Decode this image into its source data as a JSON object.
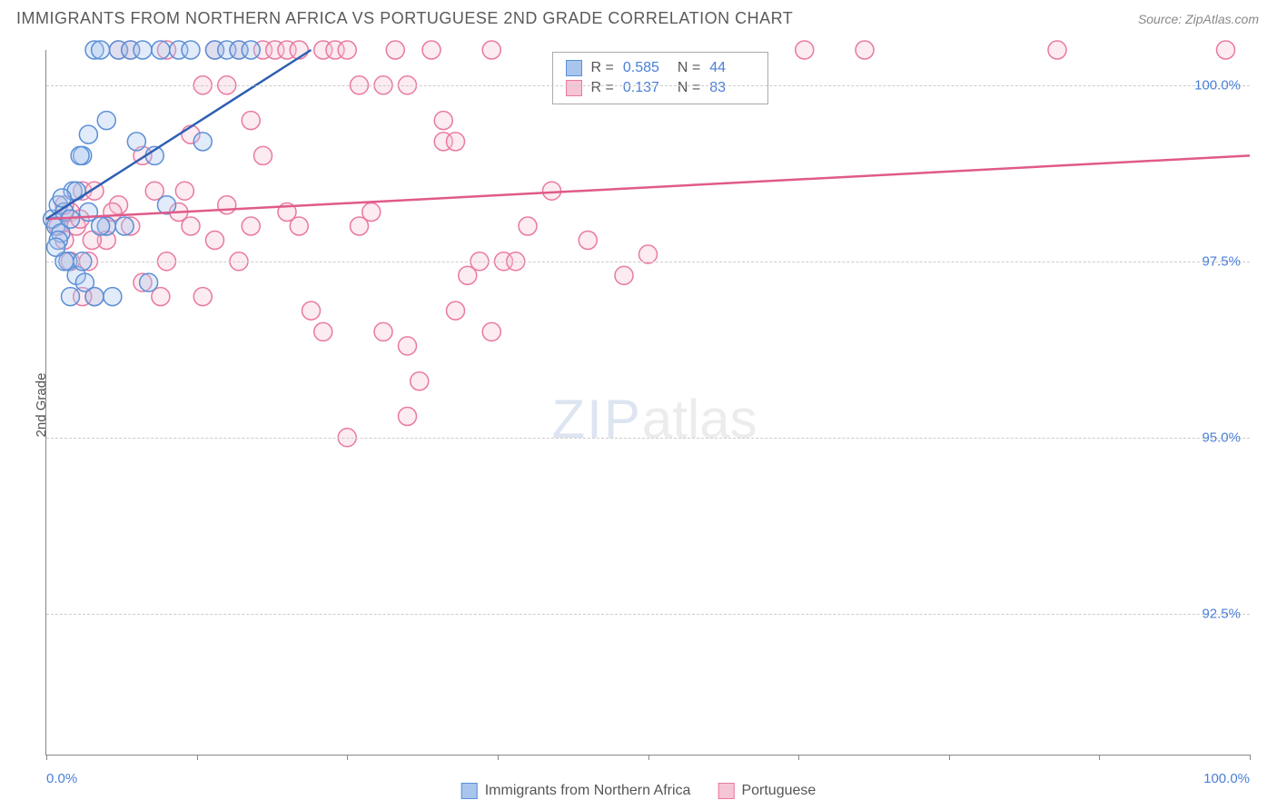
{
  "header": {
    "title": "IMMIGRANTS FROM NORTHERN AFRICA VS PORTUGUESE 2ND GRADE CORRELATION CHART",
    "source": "Source: ZipAtlas.com"
  },
  "chart": {
    "type": "scatter",
    "y_axis_label": "2nd Grade",
    "xlim": [
      0,
      100
    ],
    "ylim": [
      90.5,
      100.5
    ],
    "x_tick_label_left": "0.0%",
    "x_tick_label_right": "100.0%",
    "y_ticks": [
      {
        "value": 100.0,
        "label": "100.0%"
      },
      {
        "value": 97.5,
        "label": "97.5%"
      },
      {
        "value": 95.0,
        "label": "95.0%"
      },
      {
        "value": 92.5,
        "label": "92.5%"
      }
    ],
    "x_tick_positions": [
      0,
      12.5,
      25,
      37.5,
      50,
      62.5,
      75,
      87.5,
      100
    ],
    "grid_color": "#cccccc",
    "background_color": "#ffffff",
    "marker_radius": 10,
    "marker_opacity": 0.35,
    "watermark": {
      "zip": "ZIP",
      "atlas": "atlas"
    },
    "series": [
      {
        "name": "Immigrants from Northern Africa",
        "color_fill": "#a8c5ed",
        "color_stroke": "#5b8fd6",
        "line_color": "#2e5fb3",
        "R_label": "R =",
        "R": "0.585",
        "N_label": "N =",
        "N": "44",
        "trend_line": {
          "x1": 0,
          "y1": 98.1,
          "x2": 22,
          "y2": 100.5
        },
        "points": [
          [
            0.5,
            98.1
          ],
          [
            0.8,
            98.0
          ],
          [
            1.0,
            98.3
          ],
          [
            1.2,
            97.9
          ],
          [
            1.5,
            98.2
          ],
          [
            1.8,
            97.5
          ],
          [
            2.0,
            98.1
          ],
          [
            2.2,
            98.5
          ],
          [
            2.5,
            97.3
          ],
          [
            3.0,
            99.0
          ],
          [
            3.2,
            97.2
          ],
          [
            3.5,
            99.3
          ],
          [
            4.0,
            100.5
          ],
          [
            4.5,
            100.5
          ],
          [
            5.0,
            99.5
          ],
          [
            5.5,
            97.0
          ],
          [
            6.0,
            100.5
          ],
          [
            6.5,
            98.0
          ],
          [
            7.0,
            100.5
          ],
          [
            7.5,
            99.2
          ],
          [
            8.0,
            100.5
          ],
          [
            8.5,
            97.2
          ],
          [
            9.0,
            99.0
          ],
          [
            9.5,
            100.5
          ],
          [
            10.0,
            98.3
          ],
          [
            11.0,
            100.5
          ],
          [
            12.0,
            100.5
          ],
          [
            13.0,
            99.2
          ],
          [
            14.0,
            100.5
          ],
          [
            15.0,
            100.5
          ],
          [
            16.0,
            100.5
          ],
          [
            17.0,
            100.5
          ],
          [
            2.0,
            97.0
          ],
          [
            3.0,
            97.5
          ],
          [
            4.0,
            97.0
          ],
          [
            5.0,
            98.0
          ],
          [
            1.0,
            97.8
          ],
          [
            2.5,
            98.5
          ],
          [
            3.5,
            98.2
          ],
          [
            1.5,
            97.5
          ],
          [
            0.8,
            97.7
          ],
          [
            1.3,
            98.4
          ],
          [
            2.8,
            99.0
          ],
          [
            4.5,
            98.0
          ]
        ]
      },
      {
        "name": "Portuguese",
        "color_fill": "#f5c5d5",
        "color_stroke": "#e979a2",
        "line_color": "#e05a8a",
        "R_label": "R =",
        "R": "0.137",
        "N_label": "N =",
        "N": "83",
        "trend_line": {
          "x1": 0,
          "y1": 98.1,
          "x2": 100,
          "y2": 99.0
        },
        "points": [
          [
            1.0,
            98.0
          ],
          [
            1.5,
            97.8
          ],
          [
            2.0,
            98.2
          ],
          [
            2.5,
            98.0
          ],
          [
            3.0,
            98.5
          ],
          [
            3.5,
            97.5
          ],
          [
            4.0,
            97.0
          ],
          [
            5.0,
            98.0
          ],
          [
            6.0,
            98.3
          ],
          [
            7.0,
            100.5
          ],
          [
            8.0,
            97.2
          ],
          [
            9.0,
            98.5
          ],
          [
            10.0,
            100.5
          ],
          [
            11.0,
            98.2
          ],
          [
            12.0,
            98.0
          ],
          [
            13.0,
            100.0
          ],
          [
            14.0,
            100.5
          ],
          [
            15.0,
            98.3
          ],
          [
            16.0,
            100.5
          ],
          [
            17.0,
            99.5
          ],
          [
            18.0,
            100.5
          ],
          [
            19.0,
            100.5
          ],
          [
            20.0,
            100.5
          ],
          [
            21.0,
            98.0
          ],
          [
            22.0,
            96.8
          ],
          [
            23.0,
            100.5
          ],
          [
            24.0,
            100.5
          ],
          [
            25.0,
            95.0
          ],
          [
            26.0,
            100.0
          ],
          [
            27.0,
            98.2
          ],
          [
            28.0,
            96.5
          ],
          [
            29.0,
            100.5
          ],
          [
            30.0,
            96.3
          ],
          [
            31.0,
            95.8
          ],
          [
            32.0,
            100.5
          ],
          [
            33.0,
            99.2
          ],
          [
            34.0,
            96.8
          ],
          [
            35.0,
            97.3
          ],
          [
            36.0,
            97.5
          ],
          [
            37.0,
            96.5
          ],
          [
            38.0,
            97.5
          ],
          [
            39.0,
            97.5
          ],
          [
            40.0,
            98.0
          ],
          [
            42.0,
            98.5
          ],
          [
            45.0,
            97.8
          ],
          [
            48.0,
            97.3
          ],
          [
            50.0,
            97.6
          ],
          [
            63.0,
            100.5
          ],
          [
            68.0,
            100.5
          ],
          [
            84.0,
            100.5
          ],
          [
            98.0,
            100.5
          ],
          [
            2.0,
            97.5
          ],
          [
            3.0,
            97.0
          ],
          [
            4.0,
            98.5
          ],
          [
            5.0,
            97.8
          ],
          [
            6.0,
            100.5
          ],
          [
            8.0,
            99.0
          ],
          [
            10.0,
            97.5
          ],
          [
            12.0,
            99.3
          ],
          [
            15.0,
            100.0
          ],
          [
            18.0,
            99.0
          ],
          [
            20.0,
            98.2
          ],
          [
            23.0,
            96.5
          ],
          [
            26.0,
            98.0
          ],
          [
            30.0,
            95.3
          ],
          [
            34.0,
            99.2
          ],
          [
            1.5,
            98.3
          ],
          [
            2.8,
            98.1
          ],
          [
            3.8,
            97.8
          ],
          [
            5.5,
            98.2
          ],
          [
            7.0,
            98.0
          ],
          [
            9.5,
            97.0
          ],
          [
            11.5,
            98.5
          ],
          [
            14.0,
            97.8
          ],
          [
            17.0,
            98.0
          ],
          [
            21.0,
            100.5
          ],
          [
            25.0,
            100.5
          ],
          [
            28.0,
            100.0
          ],
          [
            33.0,
            99.5
          ],
          [
            37.0,
            100.5
          ],
          [
            30.0,
            100.0
          ],
          [
            13.0,
            97.0
          ],
          [
            16.0,
            97.5
          ]
        ]
      }
    ]
  },
  "bottom_legend": {
    "items": [
      {
        "label": "Immigrants from Northern Africa",
        "fill": "#a8c5ed",
        "stroke": "#5b8fd6"
      },
      {
        "label": "Portuguese",
        "fill": "#f5c5d5",
        "stroke": "#e979a2"
      }
    ]
  }
}
